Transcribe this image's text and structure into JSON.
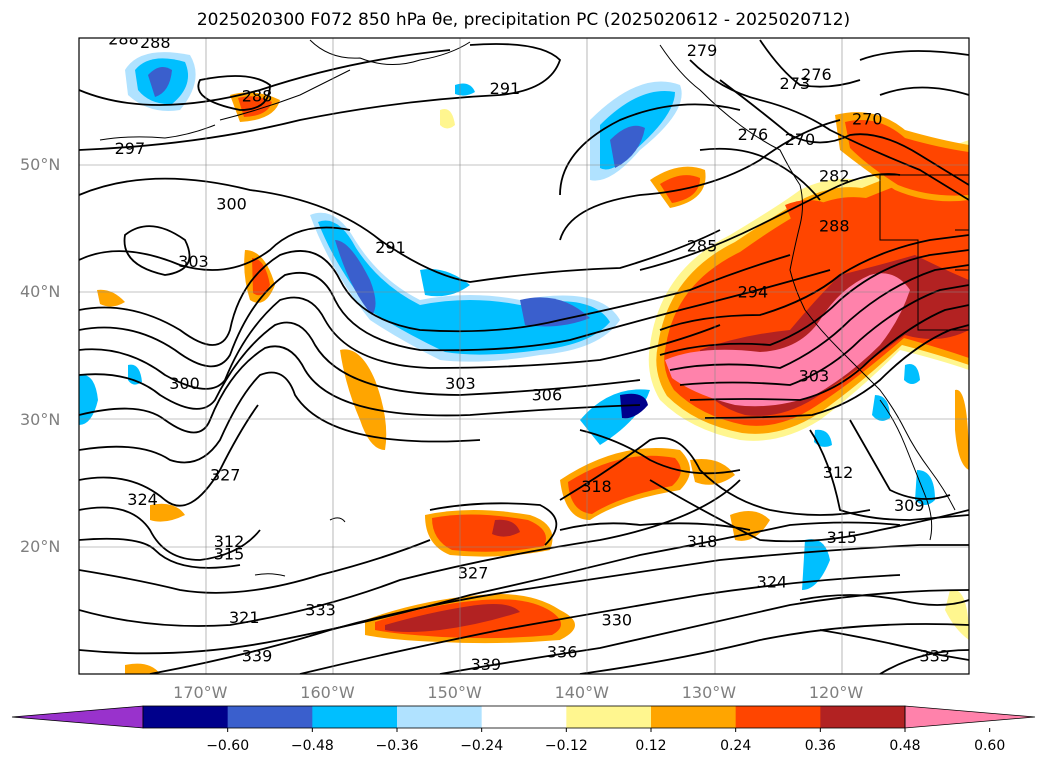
{
  "title": "2025020300 F072 850 hPa θe, precipitation PC (2025020612 - 2025020712)",
  "map": {
    "lon_range": [
      -180,
      -110
    ],
    "lat_range": [
      10,
      60
    ],
    "lat_labels": [
      {
        "lat": 50,
        "label": "50°N"
      },
      {
        "lat": 40,
        "label": "40°N"
      },
      {
        "lat": 30,
        "label": "30°N"
      },
      {
        "lat": 20,
        "label": "20°N"
      }
    ],
    "lon_labels": [
      {
        "lon": -170,
        "label": "170°W"
      },
      {
        "lon": -160,
        "label": "160°W"
      },
      {
        "lon": -150,
        "label": "150°W"
      },
      {
        "lon": -140,
        "label": "140°W"
      },
      {
        "lon": -130,
        "label": "130°W"
      },
      {
        "lon": -120,
        "label": "120°W"
      }
    ],
    "grid": true,
    "label_color": "#7f7f7f"
  },
  "contour_labels": [
    {
      "text": "288",
      "lon": -176.5,
      "lat": 59.5
    },
    {
      "text": "288",
      "lon": -174.0,
      "lat": 59.2
    },
    {
      "text": "288",
      "lon": -166.0,
      "lat": 55.0
    },
    {
      "text": "291",
      "lon": -146.5,
      "lat": 55.6
    },
    {
      "text": "297",
      "lon": -176.0,
      "lat": 50.9
    },
    {
      "text": "279",
      "lon": -131.0,
      "lat": 58.6
    },
    {
      "text": "276",
      "lon": -122.0,
      "lat": 56.7
    },
    {
      "text": "273",
      "lon": -123.7,
      "lat": 56.0
    },
    {
      "text": "270",
      "lon": -118.0,
      "lat": 53.2
    },
    {
      "text": "270",
      "lon": -123.3,
      "lat": 51.6
    },
    {
      "text": "276",
      "lon": -127.0,
      "lat": 52.0
    },
    {
      "text": "282",
      "lon": -120.6,
      "lat": 48.7
    },
    {
      "text": "300",
      "lon": -168.0,
      "lat": 46.5
    },
    {
      "text": "291",
      "lon": -155.5,
      "lat": 43.1
    },
    {
      "text": "288",
      "lon": -120.6,
      "lat": 44.8
    },
    {
      "text": "285",
      "lon": -131.0,
      "lat": 43.2
    },
    {
      "text": "303",
      "lon": -171.0,
      "lat": 42.0
    },
    {
      "text": "294",
      "lon": -127.0,
      "lat": 39.6
    },
    {
      "text": "303",
      "lon": -150.0,
      "lat": 32.4
    },
    {
      "text": "306",
      "lon": -143.2,
      "lat": 31.5
    },
    {
      "text": "300",
      "lon": -171.7,
      "lat": 32.4
    },
    {
      "text": "327",
      "lon": -168.5,
      "lat": 25.2
    },
    {
      "text": "324",
      "lon": -175.0,
      "lat": 23.3
    },
    {
      "text": "318",
      "lon": -139.3,
      "lat": 24.3
    },
    {
      "text": "312",
      "lon": -120.3,
      "lat": 25.4
    },
    {
      "text": "309",
      "lon": -114.7,
      "lat": 22.8
    },
    {
      "text": "312",
      "lon": -168.2,
      "lat": 20.0
    },
    {
      "text": "315",
      "lon": -168.2,
      "lat": 19.0
    },
    {
      "text": "318",
      "lon": -131.0,
      "lat": 20.0
    },
    {
      "text": "315",
      "lon": -120.0,
      "lat": 20.3
    },
    {
      "text": "327",
      "lon": -149.0,
      "lat": 17.5
    },
    {
      "text": "324",
      "lon": -125.5,
      "lat": 16.8
    },
    {
      "text": "321",
      "lon": -167.0,
      "lat": 14.0
    },
    {
      "text": "333",
      "lon": -161.0,
      "lat": 14.6
    },
    {
      "text": "330",
      "lon": -137.7,
      "lat": 13.8
    },
    {
      "text": "339",
      "lon": -166.0,
      "lat": 11.0
    },
    {
      "text": "336",
      "lon": -142.0,
      "lat": 11.3
    },
    {
      "text": "339",
      "lon": -148.0,
      "lat": 10.3
    },
    {
      "text": "333",
      "lon": -112.7,
      "lat": 11.0
    },
    {
      "text": "303",
      "lon": -122.2,
      "lat": 33.0
    }
  ],
  "colorbar": {
    "colors": [
      "#9932cc",
      "#00008b",
      "#3a5fcd",
      "#00bfff",
      "#b0e2ff",
      "#ffffff",
      "#fff68f",
      "#ffa500",
      "#ff4500",
      "#b22222",
      "#ff82ab"
    ],
    "tick_labels": [
      "−0.60",
      "−0.48",
      "−0.36",
      "−0.24",
      "−0.12",
      "0.12",
      "0.24",
      "0.36",
      "0.48",
      "0.60"
    ],
    "extend": "both"
  }
}
